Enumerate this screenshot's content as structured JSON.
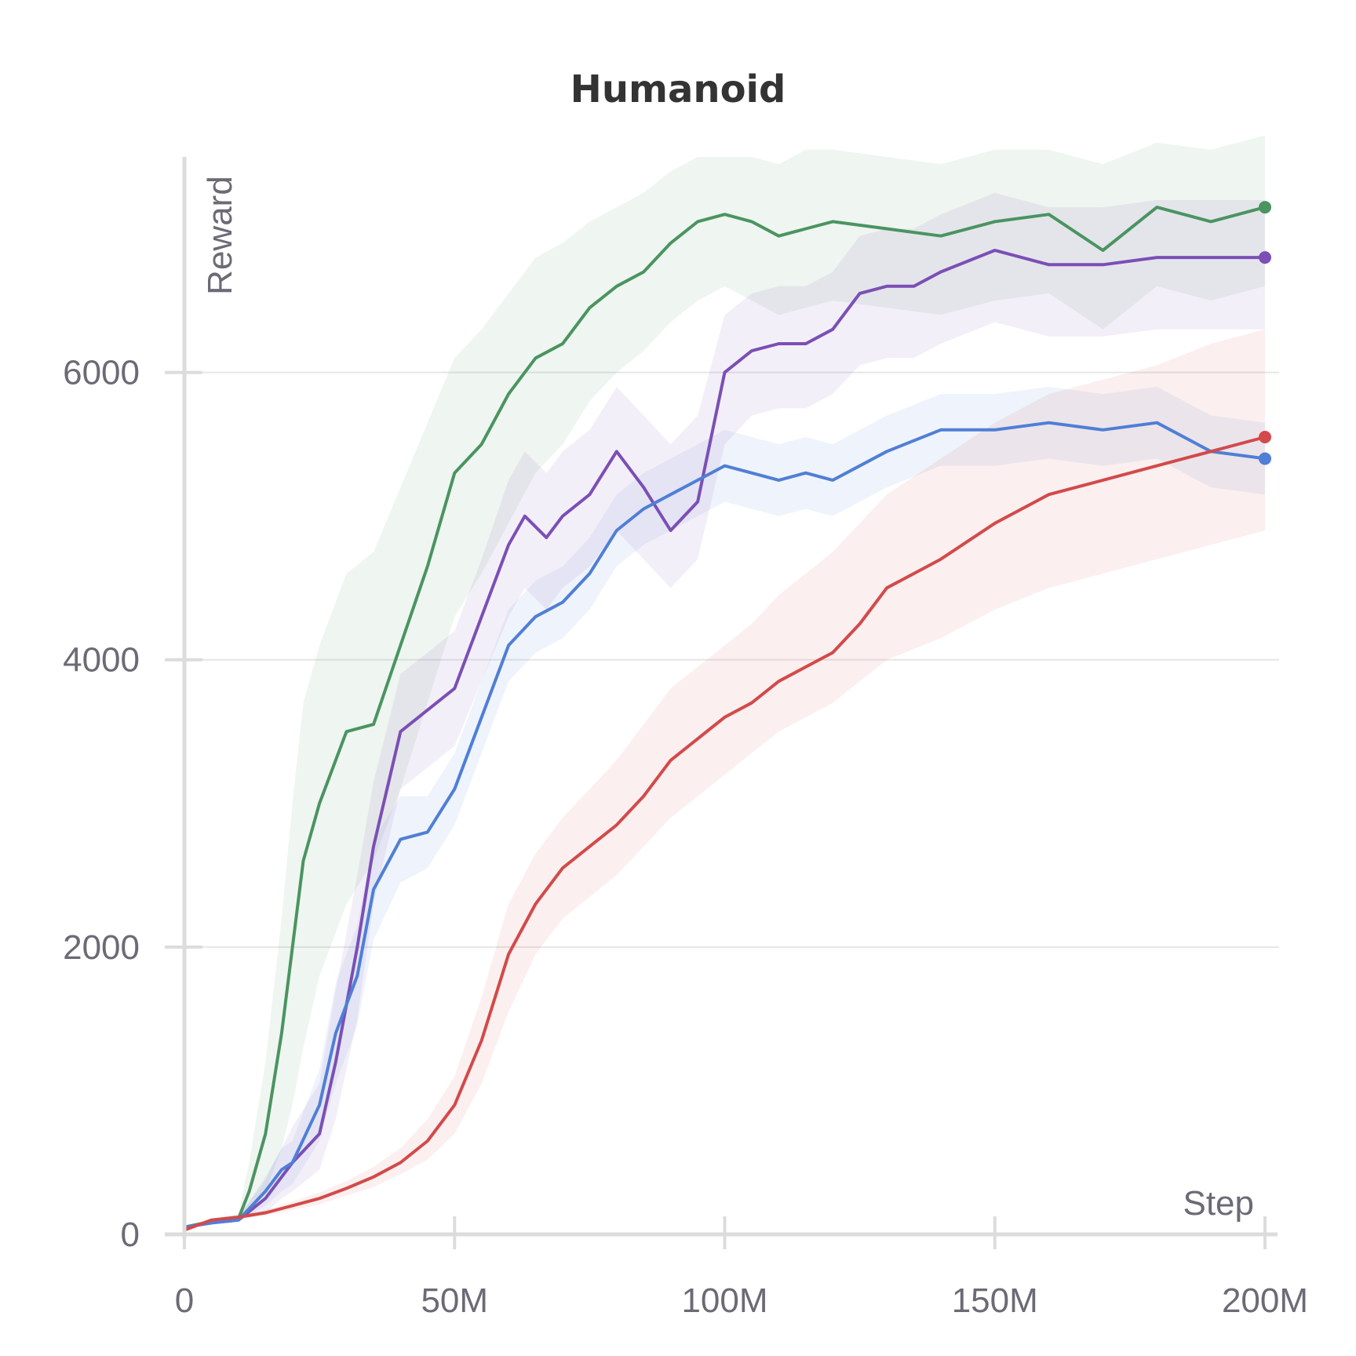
{
  "chart_data": {
    "type": "line",
    "title": "Humanoid",
    "xlabel": "Step",
    "ylabel": "Reward",
    "xlim": [
      0,
      200000000
    ],
    "ylim": [
      0,
      7500
    ],
    "x_ticks": [
      0,
      50000000,
      100000000,
      150000000,
      200000000
    ],
    "x_tick_labels": [
      "0",
      "50M",
      "100M",
      "150M",
      "200M"
    ],
    "y_ticks": [
      0,
      2000,
      4000,
      6000
    ],
    "y_tick_labels": [
      "0",
      "2000",
      "4000",
      "6000"
    ],
    "grid": true,
    "legend": "none",
    "series": [
      {
        "color": "#4a9460",
        "x": [
          0,
          5000000,
          10000000,
          12000000,
          15000000,
          18000000,
          20000000,
          22000000,
          25000000,
          30000000,
          35000000,
          40000000,
          45000000,
          50000000,
          55000000,
          60000000,
          65000000,
          70000000,
          75000000,
          80000000,
          85000000,
          90000000,
          95000000,
          100000000,
          105000000,
          110000000,
          115000000,
          120000000,
          130000000,
          140000000,
          150000000,
          160000000,
          170000000,
          180000000,
          190000000,
          200000000
        ],
        "y": [
          50,
          90,
          110,
          300,
          700,
          1400,
          2000,
          2600,
          3000,
          3500,
          3550,
          4100,
          4650,
          5300,
          5500,
          5850,
          6100,
          6200,
          6450,
          6600,
          6700,
          6900,
          7050,
          7100,
          7050,
          6950,
          7000,
          7050,
          7000,
          6950,
          7050,
          7100,
          6850,
          7150,
          7050,
          7150
        ],
        "lower": [
          50,
          80,
          90,
          150,
          300,
          600,
          900,
          1300,
          1800,
          2300,
          2600,
          3100,
          3700,
          4300,
          4600,
          4950,
          5300,
          5500,
          5800,
          6000,
          6150,
          6350,
          6500,
          6600,
          6500,
          6400,
          6450,
          6500,
          6450,
          6400,
          6500,
          6550,
          6300,
          6600,
          6500,
          6600
        ],
        "upper": [
          50,
          100,
          150,
          500,
          1200,
          2200,
          3000,
          3700,
          4100,
          4600,
          4750,
          5200,
          5650,
          6100,
          6300,
          6550,
          6800,
          6900,
          7050,
          7150,
          7250,
          7400,
          7500,
          7500,
          7500,
          7450,
          7550,
          7550,
          7500,
          7450,
          7550,
          7550,
          7450,
          7600,
          7550,
          7650
        ]
      },
      {
        "color": "#7b4fb5",
        "x": [
          0,
          5000000,
          10000000,
          15000000,
          18000000,
          20000000,
          25000000,
          28000000,
          32000000,
          35000000,
          40000000,
          45000000,
          50000000,
          55000000,
          60000000,
          63000000,
          67000000,
          70000000,
          75000000,
          80000000,
          85000000,
          90000000,
          95000000,
          100000000,
          105000000,
          110000000,
          115000000,
          120000000,
          125000000,
          130000000,
          135000000,
          140000000,
          150000000,
          160000000,
          170000000,
          180000000,
          190000000,
          200000000
        ],
        "y": [
          50,
          80,
          100,
          250,
          400,
          500,
          700,
          1200,
          2000,
          2700,
          3500,
          3650,
          3800,
          4300,
          4800,
          5000,
          4850,
          5000,
          5150,
          5450,
          5200,
          4900,
          5100,
          6000,
          6150,
          6200,
          6200,
          6300,
          6550,
          6600,
          6600,
          6700,
          6850,
          6750,
          6750,
          6800,
          6800,
          6800
        ],
        "lower": [
          50,
          70,
          90,
          150,
          250,
          300,
          450,
          800,
          1500,
          2300,
          3100,
          3250,
          3400,
          3850,
          4300,
          4500,
          4350,
          4500,
          4650,
          4900,
          4700,
          4500,
          4700,
          5500,
          5700,
          5750,
          5750,
          5850,
          6050,
          6100,
          6100,
          6200,
          6350,
          6250,
          6250,
          6300,
          6300,
          6300
        ],
        "upper": [
          50,
          90,
          120,
          380,
          600,
          750,
          1050,
          1700,
          2500,
          3150,
          3900,
          4050,
          4200,
          4700,
          5250,
          5450,
          5300,
          5450,
          5600,
          5900,
          5700,
          5500,
          5700,
          6400,
          6550,
          6600,
          6600,
          6700,
          6950,
          7000,
          7000,
          7100,
          7250,
          7150,
          7150,
          7200,
          7200,
          7200
        ]
      },
      {
        "color": "#4f7fd6",
        "x": [
          0,
          5000000,
          10000000,
          15000000,
          18000000,
          20000000,
          25000000,
          28000000,
          32000000,
          35000000,
          40000000,
          45000000,
          50000000,
          55000000,
          60000000,
          65000000,
          70000000,
          75000000,
          80000000,
          85000000,
          90000000,
          95000000,
          100000000,
          105000000,
          110000000,
          115000000,
          120000000,
          130000000,
          140000000,
          150000000,
          160000000,
          170000000,
          180000000,
          190000000,
          200000000
        ],
        "y": [
          50,
          80,
          100,
          300,
          450,
          500,
          900,
          1400,
          1800,
          2400,
          2750,
          2800,
          3100,
          3600,
          4100,
          4300,
          4400,
          4600,
          4900,
          5050,
          5150,
          5250,
          5350,
          5300,
          5250,
          5300,
          5250,
          5450,
          5600,
          5600,
          5650,
          5600,
          5650,
          5450,
          5400
        ],
        "lower": [
          50,
          70,
          90,
          200,
          300,
          350,
          650,
          1050,
          1450,
          2050,
          2450,
          2550,
          2850,
          3350,
          3850,
          4050,
          4150,
          4350,
          4650,
          4800,
          4900,
          5000,
          5100,
          5050,
          5000,
          5050,
          5000,
          5200,
          5350,
          5350,
          5400,
          5350,
          5400,
          5200,
          5150
        ],
        "upper": [
          50,
          90,
          120,
          400,
          600,
          650,
          1150,
          1750,
          2150,
          2750,
          3050,
          3050,
          3350,
          3850,
          4350,
          4550,
          4650,
          4850,
          5150,
          5300,
          5400,
          5500,
          5600,
          5550,
          5500,
          5550,
          5500,
          5700,
          5850,
          5850,
          5900,
          5850,
          5900,
          5700,
          5650
        ]
      },
      {
        "color": "#d24a4a",
        "x": [
          0,
          5000000,
          10000000,
          15000000,
          20000000,
          25000000,
          30000000,
          35000000,
          40000000,
          45000000,
          50000000,
          55000000,
          60000000,
          65000000,
          70000000,
          75000000,
          80000000,
          85000000,
          90000000,
          95000000,
          100000000,
          105000000,
          110000000,
          115000000,
          120000000,
          125000000,
          130000000,
          140000000,
          150000000,
          160000000,
          170000000,
          180000000,
          190000000,
          200000000
        ],
        "y": [
          30,
          100,
          120,
          150,
          200,
          250,
          320,
          400,
          500,
          650,
          900,
          1350,
          1950,
          2300,
          2550,
          2700,
          2850,
          3050,
          3300,
          3450,
          3600,
          3700,
          3850,
          3950,
          4050,
          4250,
          4500,
          4700,
          4950,
          5150,
          5250,
          5350,
          5450,
          5550
        ],
        "lower": [
          30,
          90,
          110,
          130,
          170,
          210,
          270,
          330,
          420,
          520,
          700,
          1050,
          1550,
          1950,
          2200,
          2350,
          2500,
          2700,
          2900,
          3050,
          3200,
          3350,
          3500,
          3600,
          3700,
          3850,
          4000,
          4150,
          4350,
          4500,
          4600,
          4700,
          4800,
          4900
        ],
        "upper": [
          30,
          110,
          130,
          170,
          230,
          290,
          370,
          470,
          600,
          800,
          1100,
          1650,
          2300,
          2650,
          2900,
          3100,
          3300,
          3550,
          3800,
          3950,
          4100,
          4250,
          4450,
          4600,
          4750,
          4950,
          5150,
          5400,
          5650,
          5850,
          5950,
          6050,
          6200,
          6300
        ]
      }
    ]
  }
}
